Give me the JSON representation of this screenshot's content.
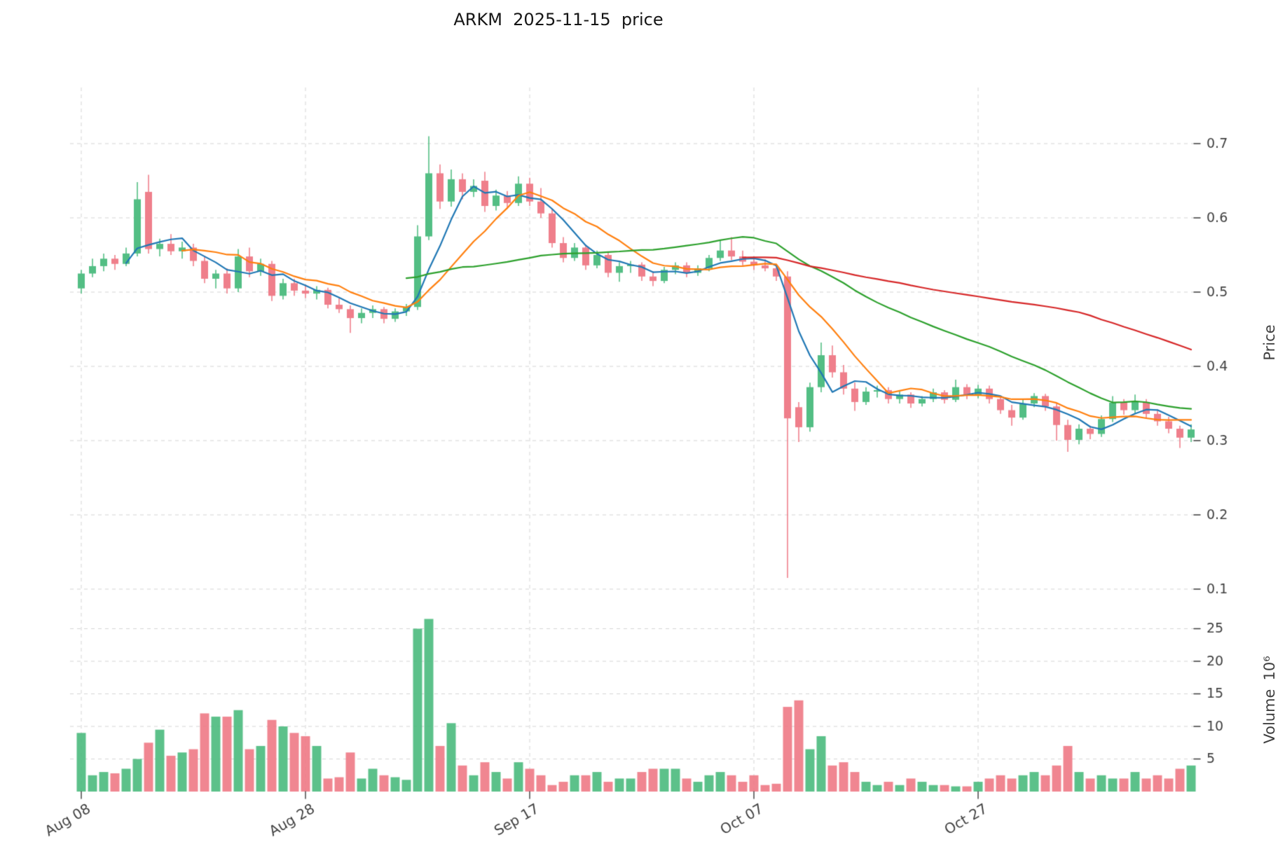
{
  "colors": {
    "up": "#53be84",
    "down": "#ef7f8b",
    "grid": "#d4d4d4",
    "tick": "#3a3a3a",
    "tick_label": "#3f3f3f",
    "ma_blue": "#1f77b4",
    "ma_orange": "#ff7f0e",
    "ma_green": "#2ca02c",
    "ma_red": "#d62728"
  },
  "chart_data": {
    "type": "candlestick",
    "title": "ARKM  2025-11-15  price",
    "symbol": "ARKM",
    "as_of_date": "2025-11-15",
    "grid": true,
    "legend": "none",
    "x_axis": {
      "frequency": "daily",
      "start_date": "2025-08-08",
      "end_date": "2025-11-15",
      "tick_labels": [
        {
          "label": "Aug 08",
          "day": 0
        },
        {
          "label": "Aug 28",
          "day": 20
        },
        {
          "label": "Sep 17",
          "day": 40
        },
        {
          "label": "Oct 07",
          "day": 60
        },
        {
          "label": "Oct 27",
          "day": 80
        }
      ]
    },
    "price_axis": {
      "label": "Price",
      "side": "right",
      "range": [
        0.085,
        0.78
      ],
      "ticks": [
        {
          "label": "0.7",
          "value": 0.7
        },
        {
          "label": "0.6",
          "value": 0.6
        },
        {
          "label": "0.5",
          "value": 0.5
        },
        {
          "label": "0.4",
          "value": 0.4
        },
        {
          "label": "0.3",
          "value": 0.3
        },
        {
          "label": "0.2",
          "value": 0.2
        },
        {
          "label": "0.1",
          "value": 0.1
        }
      ]
    },
    "volume_axis": {
      "label": "Volume",
      "scale": "10⁶",
      "side": "right",
      "range": [
        0,
        28
      ],
      "ticks": [
        {
          "label": "25",
          "value": 25
        },
        {
          "label": "20",
          "value": 20
        },
        {
          "label": "15",
          "value": 15
        },
        {
          "label": "10",
          "value": 10
        },
        {
          "label": "5",
          "value": 5
        }
      ]
    },
    "series": [
      {
        "name": "SMA5",
        "window": 5,
        "color": "#1f77b4"
      },
      {
        "name": "SMA10",
        "window": 10,
        "color": "#ff7f0e"
      },
      {
        "name": "SMA30",
        "window": 30,
        "color": "#2ca02c"
      },
      {
        "name": "SMA60",
        "window": 60,
        "color": "#d62728"
      }
    ],
    "ohlc": [
      [
        0.505,
        0.53,
        0.498,
        0.525
      ],
      [
        0.525,
        0.545,
        0.52,
        0.535
      ],
      [
        0.535,
        0.552,
        0.528,
        0.545
      ],
      [
        0.545,
        0.55,
        0.53,
        0.538
      ],
      [
        0.538,
        0.56,
        0.535,
        0.552
      ],
      [
        0.552,
        0.648,
        0.548,
        0.625
      ],
      [
        0.635,
        0.658,
        0.552,
        0.558
      ],
      [
        0.558,
        0.572,
        0.548,
        0.565
      ],
      [
        0.565,
        0.578,
        0.55,
        0.555
      ],
      [
        0.555,
        0.568,
        0.545,
        0.56
      ],
      [
        0.56,
        0.565,
        0.535,
        0.542
      ],
      [
        0.542,
        0.548,
        0.512,
        0.518
      ],
      [
        0.518,
        0.53,
        0.505,
        0.525
      ],
      [
        0.525,
        0.532,
        0.498,
        0.505
      ],
      [
        0.505,
        0.558,
        0.5,
        0.548
      ],
      [
        0.548,
        0.56,
        0.52,
        0.528
      ],
      [
        0.528,
        0.545,
        0.522,
        0.538
      ],
      [
        0.538,
        0.542,
        0.488,
        0.495
      ],
      [
        0.495,
        0.518,
        0.49,
        0.512
      ],
      [
        0.512,
        0.518,
        0.495,
        0.502
      ],
      [
        0.502,
        0.51,
        0.492,
        0.498
      ],
      [
        0.498,
        0.508,
        0.49,
        0.503
      ],
      [
        0.503,
        0.506,
        0.478,
        0.483
      ],
      [
        0.483,
        0.492,
        0.472,
        0.477
      ],
      [
        0.477,
        0.482,
        0.445,
        0.465
      ],
      [
        0.465,
        0.478,
        0.458,
        0.472
      ],
      [
        0.472,
        0.482,
        0.465,
        0.477
      ],
      [
        0.477,
        0.48,
        0.458,
        0.464
      ],
      [
        0.464,
        0.478,
        0.46,
        0.474
      ],
      [
        0.474,
        0.484,
        0.468,
        0.48
      ],
      [
        0.48,
        0.59,
        0.476,
        0.575
      ],
      [
        0.575,
        0.71,
        0.57,
        0.66
      ],
      [
        0.66,
        0.672,
        0.612,
        0.622
      ],
      [
        0.622,
        0.665,
        0.615,
        0.652
      ],
      [
        0.652,
        0.66,
        0.625,
        0.635
      ],
      [
        0.635,
        0.652,
        0.628,
        0.643
      ],
      [
        0.65,
        0.662,
        0.608,
        0.616
      ],
      [
        0.616,
        0.638,
        0.61,
        0.63
      ],
      [
        0.63,
        0.636,
        0.612,
        0.62
      ],
      [
        0.62,
        0.656,
        0.616,
        0.646
      ],
      [
        0.646,
        0.654,
        0.616,
        0.622
      ],
      [
        0.622,
        0.64,
        0.6,
        0.606
      ],
      [
        0.606,
        0.612,
        0.56,
        0.566
      ],
      [
        0.566,
        0.574,
        0.54,
        0.546
      ],
      [
        0.546,
        0.566,
        0.542,
        0.56
      ],
      [
        0.56,
        0.564,
        0.53,
        0.536
      ],
      [
        0.536,
        0.556,
        0.532,
        0.55
      ],
      [
        0.55,
        0.554,
        0.52,
        0.526
      ],
      [
        0.526,
        0.54,
        0.514,
        0.535
      ],
      [
        0.535,
        0.542,
        0.526,
        0.537
      ],
      [
        0.537,
        0.54,
        0.515,
        0.521
      ],
      [
        0.521,
        0.528,
        0.508,
        0.515
      ],
      [
        0.515,
        0.534,
        0.512,
        0.53
      ],
      [
        0.53,
        0.54,
        0.524,
        0.536
      ],
      [
        0.536,
        0.54,
        0.52,
        0.526
      ],
      [
        0.526,
        0.536,
        0.522,
        0.532
      ],
      [
        0.532,
        0.55,
        0.528,
        0.546
      ],
      [
        0.546,
        0.57,
        0.542,
        0.556
      ],
      [
        0.556,
        0.574,
        0.543,
        0.548
      ],
      [
        0.548,
        0.556,
        0.536,
        0.541
      ],
      [
        0.541,
        0.548,
        0.53,
        0.536
      ],
      [
        0.536,
        0.544,
        0.528,
        0.532
      ],
      [
        0.532,
        0.538,
        0.515,
        0.521
      ],
      [
        0.521,
        0.528,
        0.115,
        0.33
      ],
      [
        0.345,
        0.352,
        0.298,
        0.318
      ],
      [
        0.318,
        0.378,
        0.312,
        0.372
      ],
      [
        0.372,
        0.432,
        0.365,
        0.415
      ],
      [
        0.415,
        0.428,
        0.385,
        0.392
      ],
      [
        0.392,
        0.402,
        0.362,
        0.37
      ],
      [
        0.37,
        0.378,
        0.34,
        0.352
      ],
      [
        0.352,
        0.372,
        0.348,
        0.366
      ],
      [
        0.366,
        0.374,
        0.358,
        0.368
      ],
      [
        0.368,
        0.372,
        0.35,
        0.356
      ],
      [
        0.356,
        0.366,
        0.35,
        0.362
      ],
      [
        0.362,
        0.365,
        0.344,
        0.35
      ],
      [
        0.35,
        0.36,
        0.346,
        0.356
      ],
      [
        0.356,
        0.37,
        0.352,
        0.365
      ],
      [
        0.365,
        0.368,
        0.35,
        0.355
      ],
      [
        0.355,
        0.382,
        0.352,
        0.372
      ],
      [
        0.372,
        0.376,
        0.356,
        0.361
      ],
      [
        0.361,
        0.375,
        0.357,
        0.37
      ],
      [
        0.37,
        0.374,
        0.35,
        0.356
      ],
      [
        0.356,
        0.36,
        0.336,
        0.341
      ],
      [
        0.341,
        0.348,
        0.32,
        0.331
      ],
      [
        0.331,
        0.355,
        0.328,
        0.35
      ],
      [
        0.35,
        0.364,
        0.345,
        0.36
      ],
      [
        0.36,
        0.363,
        0.34,
        0.346
      ],
      [
        0.346,
        0.35,
        0.3,
        0.321
      ],
      [
        0.321,
        0.328,
        0.285,
        0.301
      ],
      [
        0.301,
        0.322,
        0.295,
        0.316
      ],
      [
        0.316,
        0.32,
        0.302,
        0.309
      ],
      [
        0.309,
        0.334,
        0.305,
        0.329
      ],
      [
        0.329,
        0.36,
        0.325,
        0.351
      ],
      [
        0.351,
        0.356,
        0.335,
        0.341
      ],
      [
        0.341,
        0.362,
        0.337,
        0.352
      ],
      [
        0.352,
        0.356,
        0.33,
        0.336
      ],
      [
        0.336,
        0.342,
        0.32,
        0.326
      ],
      [
        0.326,
        0.332,
        0.31,
        0.316
      ],
      [
        0.316,
        0.32,
        0.29,
        0.304
      ],
      [
        0.304,
        0.322,
        0.298,
        0.315
      ]
    ],
    "volume_millions": [
      9.0,
      2.5,
      3.0,
      2.8,
      3.5,
      5.0,
      7.5,
      9.5,
      5.5,
      6.0,
      6.5,
      12.0,
      11.5,
      11.5,
      12.5,
      6.5,
      7.0,
      11.0,
      10.0,
      9.0,
      8.5,
      7.0,
      2.0,
      2.2,
      6.0,
      2.0,
      3.5,
      2.5,
      2.2,
      1.8,
      25.0,
      26.5,
      7.0,
      10.5,
      4.0,
      2.5,
      4.5,
      3.0,
      2.0,
      4.5,
      3.5,
      2.5,
      1.0,
      1.5,
      2.5,
      2.5,
      3.0,
      1.5,
      2.0,
      2.0,
      3.0,
      3.5,
      3.5,
      3.5,
      2.0,
      1.5,
      2.5,
      3.0,
      2.5,
      1.5,
      2.5,
      1.0,
      1.2,
      13.0,
      14.0,
      6.5,
      8.5,
      4.0,
      4.5,
      3.0,
      1.5,
      1.0,
      1.5,
      1.0,
      2.0,
      1.5,
      1.0,
      1.0,
      0.8,
      0.8,
      1.5,
      2.0,
      2.5,
      2.0,
      2.5,
      3.0,
      2.5,
      4.0,
      7.0,
      3.0,
      2.0,
      2.5,
      2.0,
      2.0,
      3.0,
      2.0,
      2.5,
      2.0,
      3.5,
      4.0
    ]
  }
}
